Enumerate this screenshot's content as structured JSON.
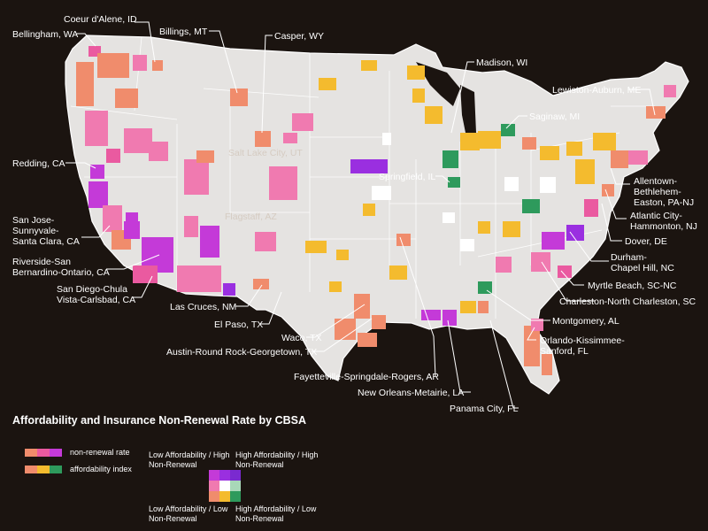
{
  "title": "Affordability and Insurance Non-Renewal Rate by CBSA",
  "legend": {
    "nonrenewal_label": "non-renewal rate",
    "affordability_label": "affordability index",
    "nonrenewal_colors": [
      "#f08c6c",
      "#ea5aa0",
      "#c43ad8"
    ],
    "affordability_colors": [
      "#f08c6c",
      "#f4bb2e",
      "#2e9a5c"
    ],
    "corner_top_left": "Low Affordability / High Non-Renewal",
    "corner_top_right": "High Affordability / High Non-Renewal",
    "corner_bottom_left": "Low Affordability / Low Non-Renewal",
    "corner_bottom_right": "High Affordability / Low Non-Renewal",
    "bivariate_grid": [
      [
        "#c43ad8",
        "#9a2fe0",
        "#7a2ad0"
      ],
      [
        "#f07ab0",
        "#ffffff",
        "#a8d8b8"
      ],
      [
        "#f08c6c",
        "#f4bb2e",
        "#2e9a5c"
      ]
    ]
  },
  "map_labels": {
    "coeur": "Coeur d'Alene, ID",
    "bellingham": "Bellingham, WA",
    "billings": "Billings, MT",
    "casper": "Casper, WY",
    "madison": "Madison, WI",
    "lewiston": "Lewiston-Auburn, ME",
    "saginaw": "Saginaw, MI",
    "redding": "Redding, CA",
    "springfield": "Springfield, IL",
    "allentown": "Allentown-\nBethlehem-\nEaston, PA-NJ",
    "atlantic": "Atlantic City-\nHammonton, NJ",
    "sanjose": "San Jose-\nSunnyvale-\nSanta Clara, CA",
    "dover": "Dover, DE",
    "durham": "Durham-\nChapel Hill, NC",
    "riverside": "Riverside-San\nBernardino-Ontario, CA",
    "myrtle": "Myrtle Beach, SC-NC",
    "sandiego": "San Diego-Chula\nVista-Carlsbad, CA",
    "charleston": "Charleston-North Charleston, SC",
    "lascruces": "Las Cruces, NM",
    "montgomery": "Montgomery, AL",
    "elpaso": "El Paso, TX",
    "waco": "Waco, TX",
    "orlando": "Orlando-Kissimmee-\nSanford, FL",
    "austin": "Austin-Round Rock-Georgetown, TX",
    "fayetteville": "Fayetteville-Springdale-Rogers, AR",
    "neworleans": "New Orleans-Metairie, LA",
    "panama": "Panama City, FL",
    "faint_saltlake": "Salt Lake City, UT",
    "faint_flagstaff": "Flagstaff, AZ"
  }
}
